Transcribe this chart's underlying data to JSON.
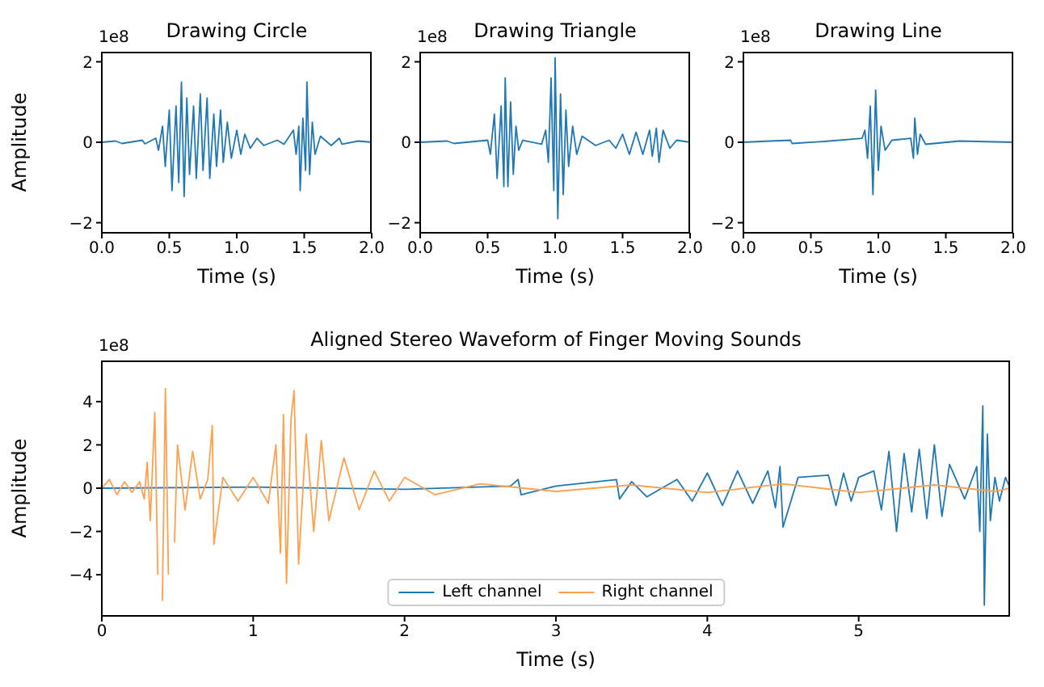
{
  "chart_data": [
    {
      "type": "line",
      "title": "Drawing Circle",
      "xlabel": "Time (s)",
      "ylabel": "Amplitude",
      "annotations": [
        "1e8"
      ],
      "xlim": [
        0,
        2
      ],
      "ylim": [
        -2.25,
        2.25
      ],
      "xticks": [
        {
          "value": 0,
          "label": "0.0"
        },
        {
          "value": 0.5,
          "label": "0.5"
        },
        {
          "value": 1,
          "label": "1.0"
        },
        {
          "value": 1.5,
          "label": "1.5"
        },
        {
          "value": 2,
          "label": "2.0"
        }
      ],
      "yticks": [
        -2,
        0,
        2
      ],
      "grid": false,
      "legend": false,
      "marker": "none",
      "line_style": "solid",
      "x": [
        0,
        0.1,
        0.15,
        0.3,
        0.32,
        0.4,
        0.42,
        0.45,
        0.47,
        0.5,
        0.52,
        0.55,
        0.57,
        0.59,
        0.61,
        0.63,
        0.65,
        0.68,
        0.7,
        0.73,
        0.75,
        0.78,
        0.8,
        0.83,
        0.85,
        0.88,
        0.9,
        0.93,
        0.96,
        1.0,
        1.03,
        1.06,
        1.1,
        1.15,
        1.2,
        1.3,
        1.35,
        1.42,
        1.44,
        1.46,
        1.47,
        1.49,
        1.51,
        1.52,
        1.54,
        1.56,
        1.58,
        1.62,
        1.7,
        1.76,
        1.78,
        1.9,
        2.0
      ],
      "series": [
        {
          "color": "#1f77b4",
          "values": [
            0,
            0.03,
            -0.03,
            0.05,
            -0.04,
            0.1,
            -0.2,
            0.4,
            -0.6,
            0.8,
            -1.2,
            0.9,
            -1.0,
            1.5,
            -1.35,
            1.1,
            -0.8,
            0.9,
            -0.9,
            1.2,
            -0.7,
            1.1,
            -0.9,
            0.7,
            -0.6,
            0.8,
            -0.5,
            0.5,
            -0.4,
            0.3,
            -0.3,
            0.2,
            -0.15,
            0.1,
            -0.08,
            0.05,
            -0.05,
            0.3,
            -0.3,
            0.4,
            -1.2,
            0.6,
            -0.7,
            1.5,
            -0.8,
            0.5,
            -0.3,
            0.15,
            -0.08,
            0.1,
            -0.05,
            0.03,
            0
          ]
        }
      ]
    },
    {
      "type": "line",
      "title": "Drawing Triangle",
      "xlabel": "Time (s)",
      "annotations": [
        "1e8"
      ],
      "xlim": [
        0,
        2
      ],
      "ylim": [
        -2.25,
        2.25
      ],
      "xticks": [
        {
          "value": 0,
          "label": "0.0"
        },
        {
          "value": 0.5,
          "label": "0.5"
        },
        {
          "value": 1,
          "label": "1.0"
        },
        {
          "value": 1.5,
          "label": "1.5"
        },
        {
          "value": 2,
          "label": "2.0"
        }
      ],
      "yticks": [
        -2,
        0,
        2
      ],
      "grid": false,
      "legend": false,
      "marker": "none",
      "line_style": "solid",
      "x": [
        0,
        0.2,
        0.25,
        0.5,
        0.52,
        0.55,
        0.57,
        0.6,
        0.62,
        0.63,
        0.65,
        0.67,
        0.69,
        0.71,
        0.73,
        0.76,
        0.9,
        0.93,
        0.95,
        0.97,
        0.99,
        1.0,
        1.02,
        1.04,
        1.06,
        1.08,
        1.1,
        1.13,
        1.16,
        1.2,
        1.3,
        1.4,
        1.45,
        1.5,
        1.55,
        1.6,
        1.65,
        1.7,
        1.72,
        1.75,
        1.77,
        1.8,
        1.85,
        1.9,
        2.0
      ],
      "series": [
        {
          "color": "#1f77b4",
          "values": [
            0,
            0.03,
            -0.03,
            0.05,
            -0.3,
            0.7,
            -0.9,
            0.9,
            -1.1,
            1.6,
            -1.1,
            1.0,
            -0.8,
            0.4,
            -0.2,
            0.05,
            -0.05,
            0.3,
            -0.5,
            1.6,
            -1.2,
            2.1,
            -1.9,
            1.2,
            -1.3,
            0.8,
            -0.6,
            0.4,
            -0.3,
            0.15,
            -0.08,
            0.05,
            -0.15,
            0.2,
            -0.3,
            0.25,
            -0.3,
            0.3,
            -0.35,
            0.35,
            -0.5,
            0.3,
            -0.15,
            0.05,
            0
          ]
        }
      ]
    },
    {
      "type": "line",
      "title": "Drawing Line",
      "xlabel": "Time (s)",
      "annotations": [
        "1e8"
      ],
      "xlim": [
        0,
        2
      ],
      "ylim": [
        -2.25,
        2.25
      ],
      "xticks": [
        {
          "value": 0,
          "label": "0.0"
        },
        {
          "value": 0.5,
          "label": "0.5"
        },
        {
          "value": 1,
          "label": "1.0"
        },
        {
          "value": 1.5,
          "label": "1.5"
        },
        {
          "value": 2,
          "label": "2.0"
        }
      ],
      "yticks": [
        -2,
        0,
        2
      ],
      "grid": false,
      "legend": false,
      "marker": "none",
      "line_style": "solid",
      "x": [
        0,
        0.2,
        0.35,
        0.36,
        0.6,
        0.88,
        0.9,
        0.92,
        0.94,
        0.96,
        0.98,
        1.0,
        1.02,
        1.05,
        1.1,
        1.24,
        1.26,
        1.27,
        1.29,
        1.31,
        1.35,
        1.6,
        2.0
      ],
      "series": [
        {
          "color": "#1f77b4",
          "values": [
            0,
            0.03,
            0.05,
            -0.03,
            0.02,
            0.1,
            0.3,
            -0.4,
            0.9,
            -1.3,
            1.3,
            -0.7,
            0.4,
            -0.2,
            0.05,
            0.1,
            -0.4,
            0.6,
            -0.3,
            0.2,
            -0.05,
            0.03,
            0
          ]
        }
      ]
    },
    {
      "type": "line",
      "title": "Aligned Stereo Waveform of Finger Moving Sounds",
      "xlabel": "Time (s)",
      "ylabel": "Amplitude",
      "annotations": [
        "1e8"
      ],
      "xlim": [
        0,
        6
      ],
      "ylim": [
        -5.9,
        5.9
      ],
      "xticks": [
        0,
        1,
        2,
        3,
        4,
        5
      ],
      "yticks": [
        -4,
        -2,
        0,
        2,
        4
      ],
      "grid": false,
      "legend": "bottom",
      "marker": "none",
      "line_style": "solid",
      "series": [
        {
          "name": "Left channel",
          "color": "#1f77b4",
          "x": [
            0,
            1,
            2,
            2.7,
            2.75,
            2.77,
            3.0,
            3.4,
            3.42,
            3.5,
            3.6,
            3.8,
            3.9,
            4.0,
            4.1,
            4.2,
            4.3,
            4.4,
            4.45,
            4.48,
            4.5,
            4.6,
            4.8,
            4.85,
            4.9,
            4.95,
            5.0,
            5.1,
            5.15,
            5.2,
            5.25,
            5.3,
            5.35,
            5.4,
            5.45,
            5.5,
            5.55,
            5.6,
            5.7,
            5.78,
            5.8,
            5.82,
            5.83,
            5.85,
            5.87,
            5.9,
            5.93,
            5.97,
            6.0
          ],
          "values": [
            0,
            0.05,
            -0.05,
            0.1,
            0.4,
            -0.3,
            0.1,
            0.4,
            -0.5,
            0.3,
            -0.4,
            0.4,
            -0.6,
            0.7,
            -0.8,
            0.8,
            -0.7,
            0.8,
            -0.9,
            1.0,
            -1.8,
            0.5,
            0.6,
            -0.8,
            0.7,
            -0.6,
            0.5,
            0.8,
            -1.0,
            1.7,
            -2.0,
            1.6,
            -1.1,
            1.8,
            -1.4,
            2.0,
            -1.3,
            1.1,
            -0.5,
            1.0,
            -2.0,
            3.8,
            -5.4,
            2.5,
            -1.5,
            0.5,
            -0.6,
            0.5,
            0
          ]
        },
        {
          "name": "Right channel",
          "color": "#ffa04f",
          "x": [
            0,
            0.05,
            0.1,
            0.15,
            0.2,
            0.25,
            0.28,
            0.3,
            0.32,
            0.35,
            0.37,
            0.38,
            0.4,
            0.42,
            0.44,
            0.46,
            0.48,
            0.5,
            0.55,
            0.6,
            0.65,
            0.7,
            0.73,
            0.74,
            0.8,
            0.9,
            1.0,
            1.1,
            1.15,
            1.18,
            1.2,
            1.22,
            1.25,
            1.27,
            1.3,
            1.35,
            1.4,
            1.45,
            1.5,
            1.6,
            1.7,
            1.8,
            1.9,
            2.0,
            2.2,
            2.5,
            3.0,
            3.5,
            4.0,
            4.5,
            5.0,
            5.5,
            5.9,
            6.0
          ],
          "values": [
            0,
            0.4,
            -0.3,
            0.3,
            -0.2,
            0.3,
            -0.5,
            1.2,
            -1.5,
            3.5,
            -4.0,
            null,
            -5.2,
            4.6,
            -4.0,
            null,
            -2.5,
            2.0,
            -1.0,
            1.7,
            -0.5,
            0.4,
            2.9,
            -2.6,
            0.5,
            -0.6,
            0.5,
            -0.7,
            2.0,
            -3.0,
            3.4,
            -4.4,
            3.2,
            4.5,
            -3.5,
            2.5,
            -2.0,
            2.2,
            -1.5,
            1.4,
            -1.0,
            0.8,
            -0.6,
            0.5,
            -0.3,
            0.2,
            -0.15,
            0.15,
            -0.2,
            0.2,
            -0.2,
            0.15,
            -0.15,
            0
          ]
        }
      ]
    }
  ]
}
